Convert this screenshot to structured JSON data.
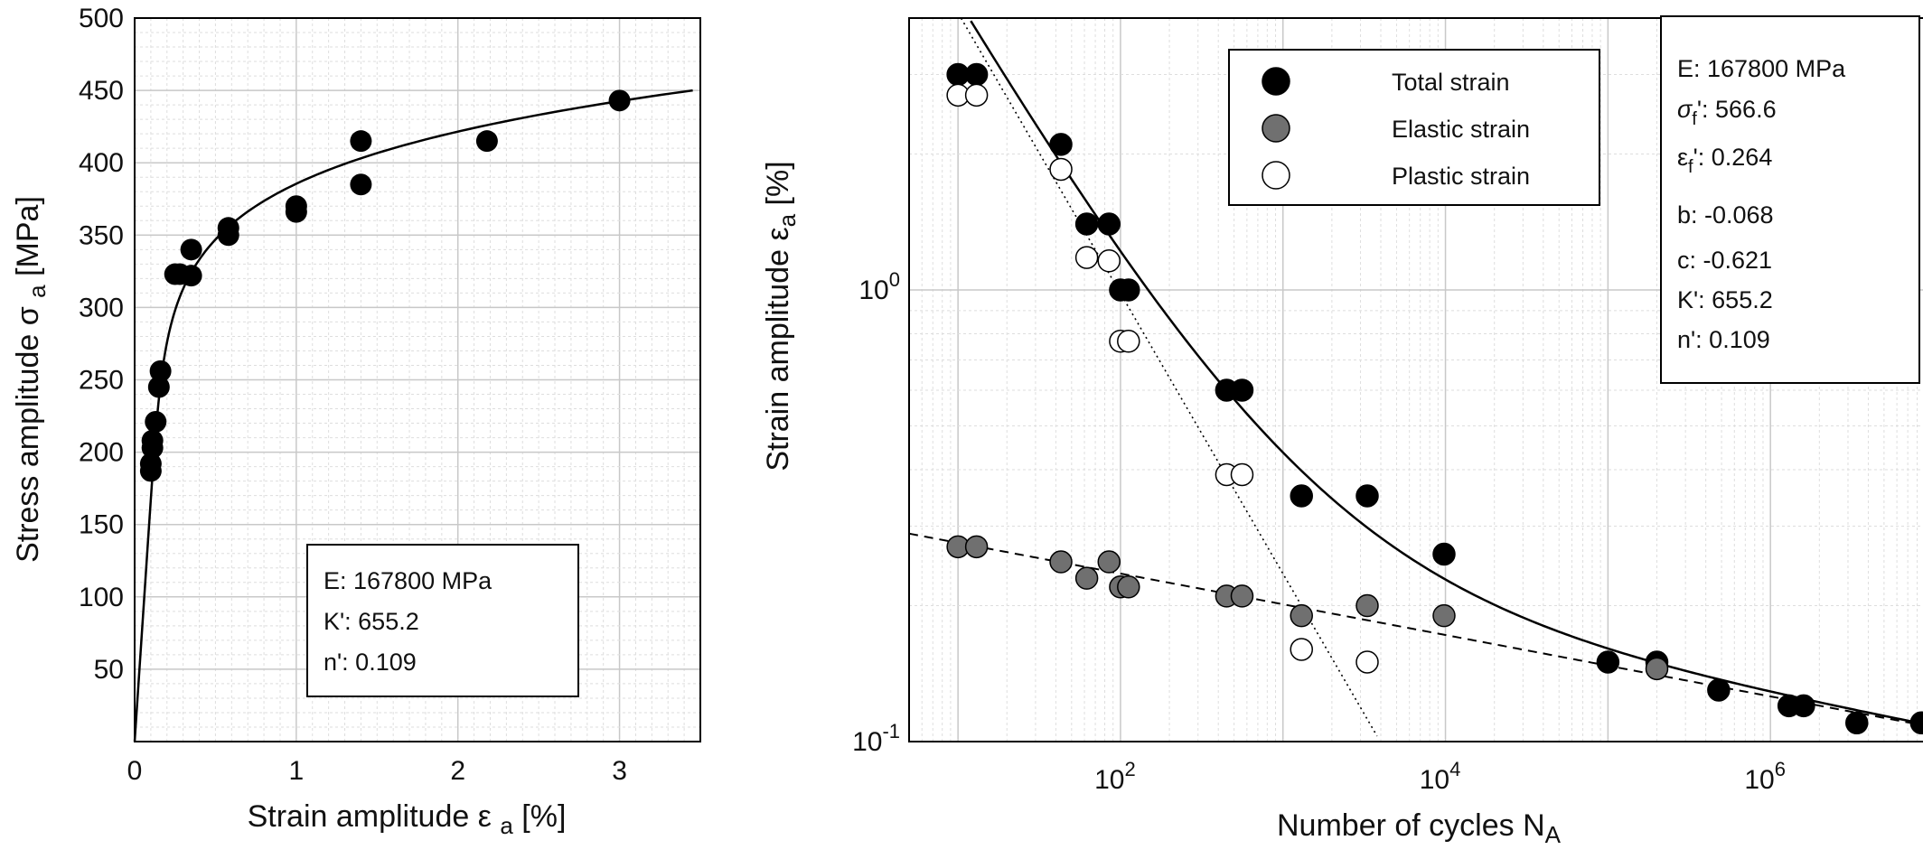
{
  "chart_data": [
    {
      "type": "scatter",
      "xlabel": "Strain amplitude ε",
      "xlabel_sub": "a",
      "xlabel_unit": "[%]",
      "ylabel": "Stress amplitude σ",
      "ylabel_sub": "a",
      "ylabel_unit": "[MPa]",
      "xlim": [
        0,
        3.5
      ],
      "ylim": [
        0,
        500
      ],
      "xticks": [
        0,
        1,
        2,
        3
      ],
      "yticks": [
        50,
        100,
        150,
        200,
        250,
        300,
        350,
        400,
        450,
        500
      ],
      "grid": true,
      "series": [
        {
          "points": [
            {
              "x": 0.1,
              "y": 187
            },
            {
              "x": 0.1,
              "y": 192
            },
            {
              "x": 0.11,
              "y": 203
            },
            {
              "x": 0.11,
              "y": 208
            },
            {
              "x": 0.13,
              "y": 221
            },
            {
              "x": 0.15,
              "y": 245
            },
            {
              "x": 0.16,
              "y": 256
            },
            {
              "x": 0.25,
              "y": 323
            },
            {
              "x": 0.28,
              "y": 323
            },
            {
              "x": 0.35,
              "y": 322
            },
            {
              "x": 0.35,
              "y": 340
            },
            {
              "x": 0.58,
              "y": 350
            },
            {
              "x": 0.58,
              "y": 355
            },
            {
              "x": 1.0,
              "y": 366
            },
            {
              "x": 1.0,
              "y": 370
            },
            {
              "x": 1.4,
              "y": 385
            },
            {
              "x": 1.4,
              "y": 415
            },
            {
              "x": 2.18,
              "y": 415
            },
            {
              "x": 3.0,
              "y": 443
            }
          ]
        }
      ],
      "fit_curve": {
        "E": 167800,
        "K": 655.2,
        "n": 0.109
      },
      "info_box": {
        "line1": "E: 167800 MPa",
        "line2": "K': 655.2",
        "line3": "n': 0.109"
      }
    },
    {
      "type": "scatter",
      "xlabel": "Number of cycles N",
      "xlabel_sub": "A",
      "ylabel": "Strain amplitude ε",
      "ylabel_sub": "a",
      "ylabel_unit": "[%]",
      "xscale": "log",
      "yscale": "log",
      "xlim": [
        5,
        10000000
      ],
      "ylim": [
        0.1,
        4
      ],
      "xtick_labels": [
        {
          "value": 100,
          "base": "10",
          "exp": "2"
        },
        {
          "value": 10000,
          "base": "10",
          "exp": "4"
        },
        {
          "value": 1000000,
          "base": "10",
          "exp": "6"
        }
      ],
      "ytick_labels": [
        {
          "value": 0.1,
          "base": "10",
          "exp": "-1"
        },
        {
          "value": 1,
          "base": "10",
          "exp": "0"
        }
      ],
      "grid": true,
      "legend_position": "top-left",
      "series": [
        {
          "name": "Total strain",
          "color": "#000000",
          "points": [
            {
              "x": 10,
              "y": 3.0
            },
            {
              "x": 13,
              "y": 3.0
            },
            {
              "x": 43,
              "y": 2.1
            },
            {
              "x": 62,
              "y": 1.4
            },
            {
              "x": 85,
              "y": 1.4
            },
            {
              "x": 100,
              "y": 1.0
            },
            {
              "x": 112,
              "y": 1.0
            },
            {
              "x": 450,
              "y": 0.6
            },
            {
              "x": 560,
              "y": 0.6
            },
            {
              "x": 1300,
              "y": 0.35
            },
            {
              "x": 3300,
              "y": 0.35
            },
            {
              "x": 9800,
              "y": 0.26
            },
            {
              "x": 100000,
              "y": 0.15
            },
            {
              "x": 200000,
              "y": 0.15
            },
            {
              "x": 480000,
              "y": 0.13
            },
            {
              "x": 1300000,
              "y": 0.12
            },
            {
              "x": 1600000,
              "y": 0.12
            },
            {
              "x": 3400000,
              "y": 0.11
            },
            {
              "x": 8500000,
              "y": 0.11
            }
          ]
        },
        {
          "name": "Elastic strain",
          "color": "#707070",
          "points": [
            {
              "x": 10,
              "y": 0.27
            },
            {
              "x": 13,
              "y": 0.27
            },
            {
              "x": 43,
              "y": 0.25
            },
            {
              "x": 62,
              "y": 0.23
            },
            {
              "x": 85,
              "y": 0.25
            },
            {
              "x": 100,
              "y": 0.22
            },
            {
              "x": 112,
              "y": 0.22
            },
            {
              "x": 450,
              "y": 0.21
            },
            {
              "x": 560,
              "y": 0.21
            },
            {
              "x": 1300,
              "y": 0.19
            },
            {
              "x": 3300,
              "y": 0.2
            },
            {
              "x": 9800,
              "y": 0.19
            },
            {
              "x": 200000,
              "y": 0.145
            }
          ]
        },
        {
          "name": "Plastic strain",
          "color": "#ffffff",
          "points": [
            {
              "x": 10,
              "y": 2.7
            },
            {
              "x": 13,
              "y": 2.7
            },
            {
              "x": 43,
              "y": 1.85
            },
            {
              "x": 62,
              "y": 1.18
            },
            {
              "x": 85,
              "y": 1.16
            },
            {
              "x": 100,
              "y": 0.77
            },
            {
              "x": 112,
              "y": 0.77
            },
            {
              "x": 450,
              "y": 0.39
            },
            {
              "x": 560,
              "y": 0.39
            },
            {
              "x": 1300,
              "y": 0.16
            },
            {
              "x": 3300,
              "y": 0.15
            }
          ]
        }
      ],
      "fit_parameters": {
        "E": 167800,
        "sigma_f": 566.6,
        "eps_f": 0.264,
        "b": -0.068,
        "c": -0.621
      },
      "info_box": {
        "line1": "E: 167800 MPa",
        "sigma_label": "σ",
        "sigma_sub": "f",
        "sigma_value": "': 566.6",
        "eps_label": "ε",
        "eps_sub": "f",
        "eps_value": "': 0.264",
        "line4": "b: -0.068",
        "line5": "c: -0.621",
        "line6": "K': 655.2",
        "line7": "n': 0.109"
      }
    }
  ]
}
